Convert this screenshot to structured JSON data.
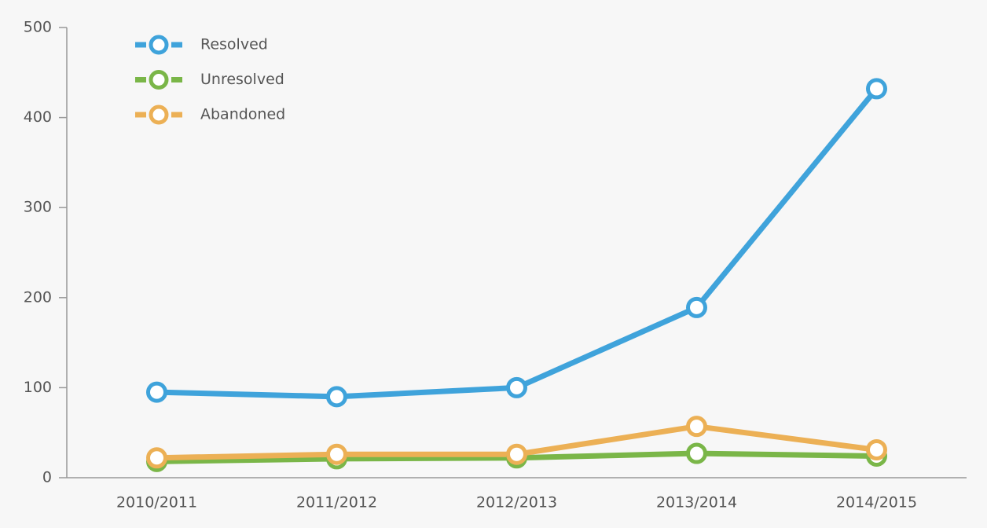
{
  "chart_data": {
    "type": "line",
    "categories": [
      "2010/2011",
      "2011/2012",
      "2012/2013",
      "2013/2014",
      "2014/2015"
    ],
    "series": [
      {
        "name": "Resolved",
        "color": "#3fa3db",
        "values": [
          95,
          90,
          100,
          189,
          432
        ]
      },
      {
        "name": "Unresolved",
        "color": "#7ab648",
        "values": [
          18,
          21,
          22,
          27,
          24
        ]
      },
      {
        "name": "Abandoned",
        "color": "#ecb055",
        "values": [
          22,
          26,
          26,
          57,
          31
        ]
      }
    ],
    "ylim": [
      0,
      500
    ],
    "yticks": [
      0,
      100,
      200,
      300,
      400,
      500
    ],
    "legend": "upper left",
    "grid": false
  }
}
